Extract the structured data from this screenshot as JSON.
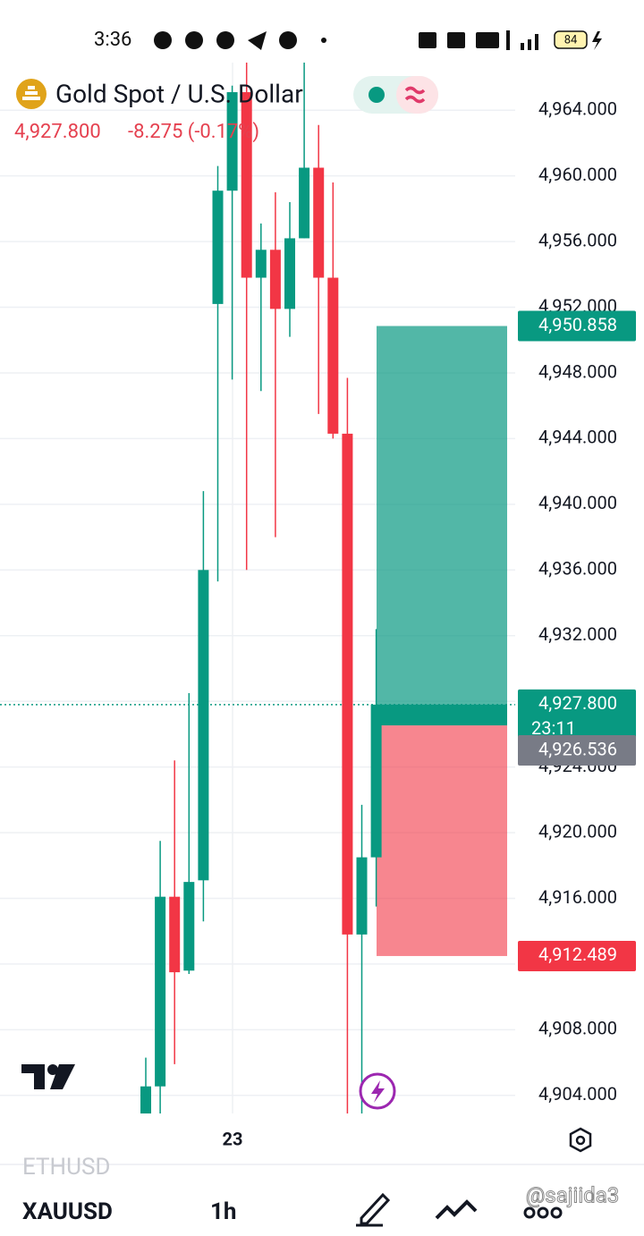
{
  "status_bar": {
    "time": "3:36",
    "battery": "84"
  },
  "chart_data": {
    "type": "candlestick",
    "title": "Gold Spot / U.S. Dollar",
    "change": "-8.275 (-0.17%)",
    "categories": [
      null,
      null,
      null,
      null,
      null,
      null,
      "23",
      null,
      null,
      null,
      null,
      null,
      null,
      null,
      null,
      null,
      null
    ],
    "open": [
      4902.9,
      4904.55,
      4916.1,
      4911.6,
      4917.1,
      4952.2,
      4959.1,
      4965.1,
      4953.8,
      4955.5,
      4951.9,
      4956.2,
      4960.5,
      4953.8,
      4944.3,
      4913.8,
      4918.5
    ],
    "high": [
      4906.3,
      4919.5,
      4924.4,
      4928.5,
      4940.8,
      4960.6,
      4965.5,
      4966.9,
      4957.1,
      4959.0,
      4958.4,
      4966.9,
      4963.1,
      4959.6,
      4947.7,
      4921.7,
      4932.4
    ],
    "low": [
      4902.0,
      4902.0,
      4905.9,
      4911.4,
      4914.6,
      4935.3,
      4947.6,
      4936.0,
      4946.9,
      4938.0,
      4950.2,
      4956.2,
      4945.5,
      4944.0,
      4902.0,
      4902.0,
      4915.5
    ],
    "close": [
      4904.55,
      4916.1,
      4911.5,
      4917.0,
      4936.0,
      4959.1,
      4965.1,
      4953.8,
      4955.5,
      4951.9,
      4956.2,
      4960.5,
      4953.8,
      4944.3,
      4913.8,
      4918.5,
      4927.8
    ],
    "up_color": "#089981",
    "down_color": "#f23645",
    "ylim": [
      4902.9,
      4966.9
    ],
    "yticks": [
      {
        "value": 4904,
        "label": "4,904.000"
      },
      {
        "value": 4908,
        "label": "4,908.000"
      },
      {
        "value": 4912,
        "label": "4,912.000"
      },
      {
        "value": 4916,
        "label": "4,916.000"
      },
      {
        "value": 4920,
        "label": "4,920.000"
      },
      {
        "value": 4924,
        "label": "4,924.000"
      },
      {
        "value": 4928,
        "label": "4,928.000"
      },
      {
        "value": 4932,
        "label": "4,932.000"
      },
      {
        "value": 4936,
        "label": "4,936.000"
      },
      {
        "value": 4940,
        "label": "4,940.000"
      },
      {
        "value": 4944,
        "label": "4,944.000"
      },
      {
        "value": 4948,
        "label": "4,948.000"
      },
      {
        "value": 4952,
        "label": "4,952.000"
      },
      {
        "value": 4956,
        "label": "4,956.000"
      },
      {
        "value": 4960,
        "label": "4,960.000"
      },
      {
        "value": 4964,
        "label": "4,964.000"
      }
    ],
    "grid": true,
    "last_price": {
      "value": 4927.8,
      "label": "4,927.800"
    },
    "countdown": "23:11",
    "position": {
      "take_profit": {
        "value": 4950.858,
        "label": "4,950.858"
      },
      "entry": {
        "value": 4926.536,
        "label": "4,926.536"
      },
      "stop_loss": {
        "value": 4912.489,
        "label": "4,912.489"
      },
      "profit_color": "#089981",
      "loss_color": "#f23645"
    }
  },
  "footer": {
    "previous_symbol": "ETHUSD",
    "symbol": "XAUUSD",
    "interval": "1h"
  },
  "watermark": "@sajiida3"
}
